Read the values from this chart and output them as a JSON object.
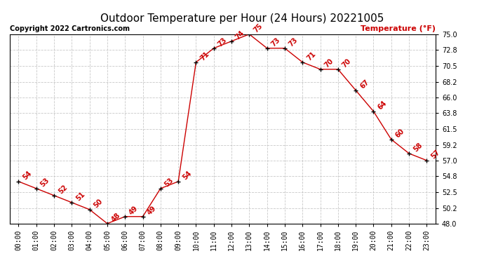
{
  "title": "Outdoor Temperature per Hour (24 Hours) 20221005",
  "copyright": "Copyright 2022 Cartronics.com",
  "legend_label": "Temperature (°F)",
  "hours": [
    0,
    1,
    2,
    3,
    4,
    5,
    6,
    7,
    8,
    9,
    10,
    11,
    12,
    13,
    14,
    15,
    16,
    17,
    18,
    19,
    20,
    21,
    22,
    23
  ],
  "temperatures": [
    54,
    53,
    52,
    51,
    50,
    48,
    49,
    49,
    53,
    54,
    71,
    73,
    74,
    75,
    73,
    73,
    71,
    70,
    70,
    67,
    64,
    60,
    58,
    57
  ],
  "ylim": [
    48.0,
    75.0
  ],
  "yticks": [
    48.0,
    50.2,
    52.5,
    54.8,
    57.0,
    59.2,
    61.5,
    63.8,
    66.0,
    68.2,
    70.5,
    72.8,
    75.0
  ],
  "line_color": "#cc0000",
  "marker_color": "#000000",
  "label_color": "#cc0000",
  "grid_color": "#bbbbbb",
  "background_color": "#ffffff",
  "title_color": "#000000",
  "copyright_color": "#000000",
  "legend_color": "#cc0000",
  "annotation_fontsize": 7,
  "tick_fontsize": 7,
  "title_fontsize": 11
}
